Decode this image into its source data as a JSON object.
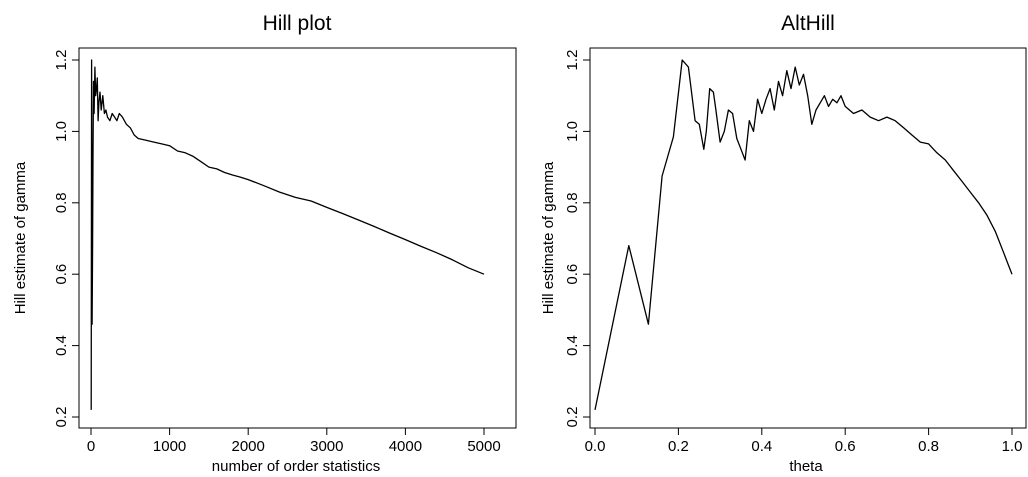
{
  "chart_data": [
    {
      "type": "line",
      "title": "Hill plot",
      "xlabel": "number of order statistics",
      "ylabel": "Hill estimate of gamma",
      "xlim": [
        0,
        5000
      ],
      "ylim": [
        0.2,
        1.2
      ],
      "xticks": [
        0,
        1000,
        2000,
        3000,
        4000,
        5000
      ],
      "yticks": [
        0.2,
        0.4,
        0.6,
        0.8,
        1.0,
        1.2
      ],
      "xtick_labels": [
        "0",
        "1000",
        "2000",
        "3000",
        "4000",
        "5000"
      ],
      "ytick_labels": [
        "0.2",
        "0.4",
        "0.6",
        "0.8",
        "1.0",
        "1.2"
      ],
      "grid": false,
      "series": [
        {
          "x": [
            2,
            8,
            14,
            20,
            26,
            32,
            40,
            50,
            60,
            70,
            80,
            90,
            100,
            115,
            130,
            150,
            170,
            190,
            210,
            240,
            270,
            300,
            330,
            360,
            400,
            450,
            500,
            550,
            600,
            700,
            800,
            900,
            1000,
            1100,
            1200,
            1300,
            1400,
            1500,
            1600,
            1700,
            1800,
            1900,
            2000,
            2200,
            2400,
            2600,
            2800,
            3000,
            3200,
            3400,
            3600,
            3800,
            4000,
            4200,
            4400,
            4600,
            4800,
            5000
          ],
          "y": [
            0.22,
            1.2,
            0.46,
            0.68,
            0.93,
            1.14,
            1.05,
            1.18,
            1.1,
            1.12,
            1.15,
            1.03,
            1.08,
            1.11,
            1.06,
            1.1,
            1.05,
            1.06,
            1.04,
            1.03,
            1.05,
            1.04,
            1.03,
            1.05,
            1.04,
            1.02,
            1.01,
            0.99,
            0.98,
            0.975,
            0.97,
            0.965,
            0.96,
            0.945,
            0.94,
            0.93,
            0.915,
            0.9,
            0.895,
            0.885,
            0.878,
            0.872,
            0.865,
            0.848,
            0.83,
            0.815,
            0.805,
            0.787,
            0.77,
            0.752,
            0.734,
            0.715,
            0.697,
            0.678,
            0.66,
            0.64,
            0.618,
            0.6
          ]
        }
      ]
    },
    {
      "type": "line",
      "title": "AltHill",
      "xlabel": "theta",
      "ylabel": "Hill estimate of gamma",
      "xlim": [
        0,
        1
      ],
      "ylim": [
        0.2,
        1.2
      ],
      "xticks": [
        0.0,
        0.2,
        0.4,
        0.6,
        0.8,
        1.0
      ],
      "yticks": [
        0.2,
        0.4,
        0.6,
        0.8,
        1.0,
        1.2
      ],
      "xtick_labels": [
        "0.0",
        "0.2",
        "0.4",
        "0.6",
        "0.8",
        "1.0"
      ],
      "ytick_labels": [
        "0.2",
        "0.4",
        "0.6",
        "0.8",
        "1.0",
        "1.2"
      ],
      "grid": false,
      "series": [
        {
          "x": [
            0.0,
            0.081,
            0.128,
            0.161,
            0.188,
            0.209,
            0.224,
            0.24,
            0.25,
            0.261,
            0.267,
            0.275,
            0.284,
            0.29,
            0.3,
            0.31,
            0.32,
            0.33,
            0.34,
            0.35,
            0.36,
            0.37,
            0.38,
            0.39,
            0.4,
            0.41,
            0.42,
            0.43,
            0.44,
            0.45,
            0.46,
            0.47,
            0.48,
            0.49,
            0.5,
            0.51,
            0.52,
            0.53,
            0.54,
            0.55,
            0.56,
            0.57,
            0.58,
            0.59,
            0.6,
            0.62,
            0.64,
            0.66,
            0.68,
            0.7,
            0.72,
            0.74,
            0.76,
            0.78,
            0.8,
            0.82,
            0.84,
            0.86,
            0.88,
            0.9,
            0.92,
            0.94,
            0.96,
            0.97,
            0.98,
            0.99,
            1.0
          ],
          "y": [
            0.22,
            0.68,
            0.46,
            0.875,
            0.985,
            1.2,
            1.18,
            1.03,
            1.02,
            0.95,
            1.0,
            1.12,
            1.11,
            1.06,
            0.97,
            1.0,
            1.06,
            1.05,
            0.98,
            0.95,
            0.92,
            1.03,
            1.0,
            1.09,
            1.05,
            1.09,
            1.12,
            1.06,
            1.14,
            1.1,
            1.17,
            1.12,
            1.18,
            1.13,
            1.16,
            1.1,
            1.02,
            1.06,
            1.08,
            1.1,
            1.07,
            1.09,
            1.08,
            1.1,
            1.07,
            1.05,
            1.06,
            1.04,
            1.03,
            1.04,
            1.03,
            1.01,
            0.99,
            0.97,
            0.965,
            0.94,
            0.92,
            0.89,
            0.86,
            0.83,
            0.8,
            0.765,
            0.72,
            0.69,
            0.66,
            0.63,
            0.6
          ]
        }
      ]
    }
  ]
}
